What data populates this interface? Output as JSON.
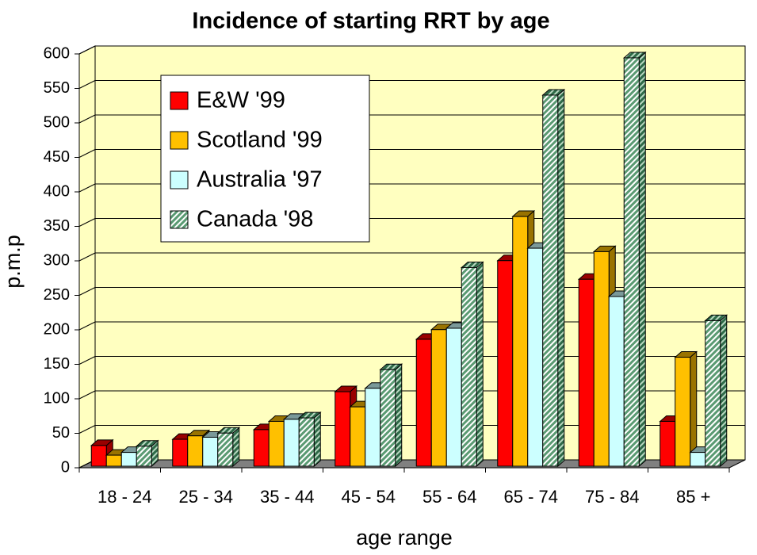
{
  "chart_data": {
    "type": "bar3d",
    "title": "Incidence of starting RRT by age",
    "xlabel": "age range",
    "ylabel": "p.m.p",
    "categories": [
      "18 - 24",
      "25 - 34",
      "35 - 44",
      "45 - 54",
      "55 - 64",
      "65 - 74",
      "75 - 84",
      "85 +"
    ],
    "series": [
      {
        "name": "E&W '99",
        "color": "#ff0000",
        "values": [
          30,
          39,
          53,
          108,
          184,
          298,
          271,
          65
        ]
      },
      {
        "name": "Scotland '99",
        "color": "#ffc000",
        "values": [
          16,
          44,
          65,
          86,
          198,
          362,
          311,
          158
        ]
      },
      {
        "name": "Australia '97",
        "color": "#ccffff",
        "values": [
          20,
          42,
          68,
          113,
          200,
          316,
          246,
          20
        ]
      },
      {
        "name": "Canada '98",
        "color": "#99cc99",
        "hatch": true,
        "values": [
          29,
          48,
          70,
          140,
          288,
          538,
          592,
          211
        ]
      }
    ],
    "ylim": [
      0,
      600
    ],
    "yticks": [
      0,
      50,
      100,
      150,
      200,
      250,
      300,
      350,
      400,
      450,
      500,
      550,
      600
    ],
    "grid": true,
    "legend": "upper-left",
    "background": "#ffffc0"
  }
}
